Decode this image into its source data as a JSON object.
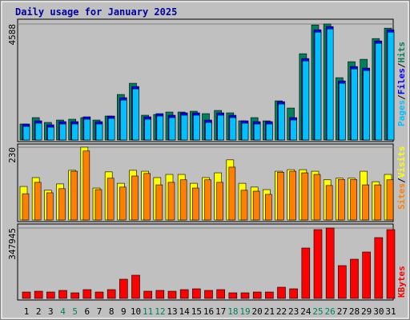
{
  "title": "Daily usage for January 2025",
  "categories": [
    "1",
    "2",
    "3",
    "4",
    "5",
    "6",
    "7",
    "8",
    "9",
    "10",
    "11",
    "12",
    "13",
    "14",
    "15",
    "16",
    "17",
    "18",
    "19",
    "20",
    "21",
    "22",
    "23",
    "24",
    "25",
    "26",
    "27",
    "28",
    "29",
    "30",
    "31"
  ],
  "category_colors": [
    "#000000",
    "#000000",
    "#000000",
    "#00805c",
    "#00805c",
    "#000000",
    "#000000",
    "#000000",
    "#000000",
    "#000000",
    "#00805c",
    "#00805c",
    "#000000",
    "#000000",
    "#000000",
    "#000000",
    "#000000",
    "#00805c",
    "#00805c",
    "#000000",
    "#000000",
    "#000000",
    "#000000",
    "#000000",
    "#00805c",
    "#00805c",
    "#000000",
    "#000000",
    "#000000",
    "#000000",
    "#000000"
  ],
  "legend_separator": "/",
  "chart_data": [
    {
      "type": "bar",
      "ylim": [
        0,
        4588
      ],
      "yticks": [
        4588
      ],
      "series": [
        {
          "name": "Hits",
          "color": "#00805c",
          "values": [
            632,
            885,
            695,
            790,
            822,
            885,
            790,
            948,
            1801,
            2244,
            980,
            1011,
            1106,
            1106,
            1138,
            1043,
            1169,
            1074,
            758,
            885,
            758,
            1548,
            1264,
            3413,
            4550,
            4588,
            2465,
            3097,
            3192,
            4013,
            4424
          ]
        },
        {
          "name": "Files",
          "color": "#0000ff",
          "values": [
            632,
            759,
            601,
            727,
            727,
            917,
            727,
            948,
            1675,
            2117,
            917,
            1043,
            980,
            1075,
            1075,
            790,
            1075,
            980,
            759,
            727,
            727,
            1517,
            885,
            3223,
            4361,
            4487,
            2339,
            2907,
            2844,
            3919,
            4361
          ]
        },
        {
          "name": "Pages",
          "color": "#00c0ff",
          "values": [
            537,
            664,
            506,
            632,
            632,
            822,
            632,
            853,
            1580,
            2022,
            822,
            948,
            885,
            980,
            980,
            695,
            980,
            885,
            664,
            632,
            632,
            1422,
            790,
            3128,
            4266,
            4392,
            2244,
            2812,
            2749,
            3824,
            4266
          ]
        }
      ]
    },
    {
      "type": "bar",
      "ylim": [
        0,
        230
      ],
      "yticks": [
        230
      ],
      "series": [
        {
          "name": "Visits",
          "color": "#ffff00",
          "values": [
            106,
            134,
            94,
            114,
            157,
            230,
            101,
            152,
            116,
            157,
            154,
            134,
            144,
            144,
            116,
            134,
            149,
            190,
            116,
            104,
            96,
            154,
            159,
            159,
            154,
            127,
            132,
            132,
            154,
            121,
            144
          ]
        },
        {
          "name": "Sites",
          "color": "#ff8000",
          "values": [
            83,
            119,
            86,
            99,
            154,
            218,
            96,
            132,
            104,
            139,
            147,
            111,
            119,
            127,
            101,
            127,
            119,
            167,
            94,
            91,
            81,
            151,
            154,
            149,
            144,
            109,
            128,
            128,
            111,
            111,
            127
          ]
        }
      ]
    },
    {
      "type": "bar",
      "ylim": [
        0,
        347945
      ],
      "yticks": [
        347945
      ],
      "series": [
        {
          "name": "KBytes",
          "color": "#ff0000",
          "values": [
            31632,
            35586,
            31632,
            39540,
            27678,
            43494,
            31632,
            43494,
            94896,
            114666,
            35586,
            39540,
            35586,
            43494,
            47448,
            39540,
            43494,
            27678,
            27678,
            31632,
            31632,
            55356,
            47448,
            249102,
            340044,
            347945,
            162114,
            193746,
            229332,
            300504,
            340044
          ]
        }
      ]
    }
  ]
}
